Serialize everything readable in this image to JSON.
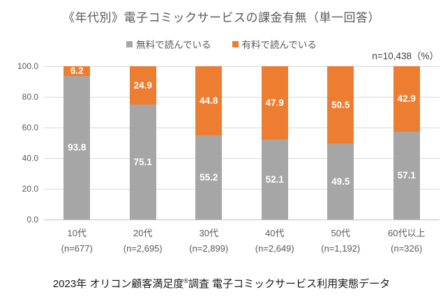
{
  "title": "《年代別》電子コミックサービスの課金有無（単一回答）",
  "annotation": "n=10,438（%）",
  "footer": {
    "pre": "2023年 オリコン顧客満足度",
    "sup": "®",
    "post": "調査 電子コミックサービス利用実態データ"
  },
  "chart_data": {
    "type": "bar",
    "stacked": true,
    "title": "《年代別》電子コミックサービスの課金有無（単一回答）",
    "categories": [
      "10代",
      "20代",
      "30代",
      "40代",
      "50代",
      "60代以上"
    ],
    "category_counts": [
      "(n=677)",
      "(n=2,695)",
      "(n=2,899)",
      "(n=2,649)",
      "(n=1,192)",
      "(n=326)"
    ],
    "series": [
      {
        "name": "無料で読んでいる",
        "color": "#a6a6a6",
        "values": [
          93.8,
          75.1,
          55.2,
          52.1,
          49.5,
          57.1
        ]
      },
      {
        "name": "有料で読んでいる",
        "color": "#ed7d31",
        "values": [
          6.2,
          24.9,
          44.8,
          47.9,
          50.5,
          42.9
        ]
      }
    ],
    "ylim": [
      0,
      100
    ],
    "yticks": [
      100,
      80,
      60,
      40,
      20,
      0
    ],
    "ytick_labels": [
      "100.0",
      "80.0",
      "60.0",
      "40.0",
      "20.0",
      "0.0"
    ],
    "grid": true,
    "legend_position": "top",
    "value_label_color": "#ffffff",
    "n_total_label": "n=10,438（%）"
  }
}
